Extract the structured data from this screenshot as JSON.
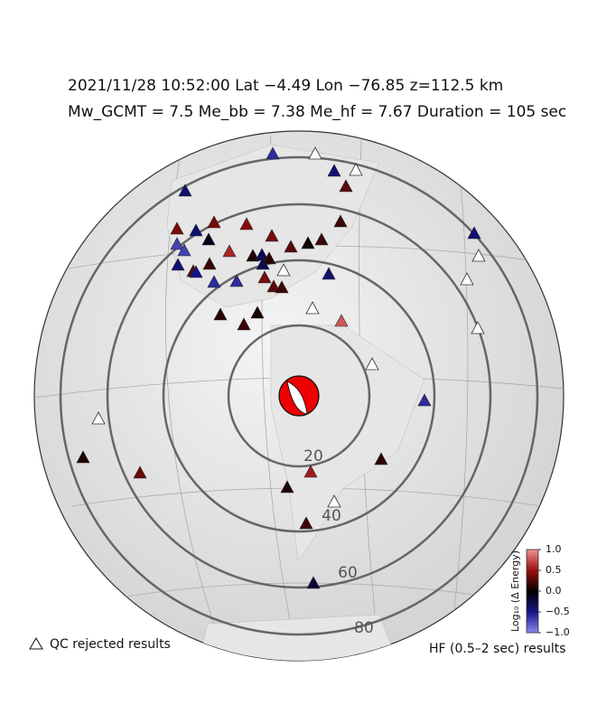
{
  "header": {
    "line1": "2021/11/28  10:52:00   Lat −4.49    Lon −76.85   z=112.5 km",
    "line2": "Mw_GCMT = 7.5   Me_bb = 7.38   Me_hf = 7.67   Duration = 105 sec"
  },
  "distance_rings": [
    "20",
    "40",
    "60",
    "80"
  ],
  "colorbar": {
    "title": "Log₁₀ (Δ Energy)",
    "clim": [
      -1,
      1
    ],
    "ticks": [
      {
        "value": 1,
        "label": "1.0"
      },
      0.5,
      {
        "value": 0,
        "label": "0.0"
      },
      {
        "value": -0.5,
        "label": "−0.5"
      },
      {
        "value": -1,
        "label": "−1.0"
      }
    ]
  },
  "station_values": [
    -0.6,
    null,
    -0.4,
    null,
    0.3,
    -0.4,
    0.2,
    0.4,
    -0.4,
    0.4,
    0.45,
    -0.1,
    0.4,
    0.3,
    0.05,
    0.2,
    -0.7,
    -0.7,
    0.6,
    0.1,
    -0.3,
    0.15,
    -0.4,
    0.3,
    0.2,
    -0.5,
    -0.3,
    -0.6,
    -0.6,
    0.4,
    null,
    -0.4,
    0.3,
    0.2,
    0.15,
    0.1,
    0.2,
    null,
    0.8,
    -0.4,
    null,
    null,
    null,
    null,
    -0.6,
    null,
    0.1,
    0.35,
    0.55,
    0.1,
    0.15,
    null,
    0.2,
    -0.2
  ],
  "legend": {
    "rejected": "QC rejected results",
    "results": "HF (0.5–2 sec) results"
  }
}
